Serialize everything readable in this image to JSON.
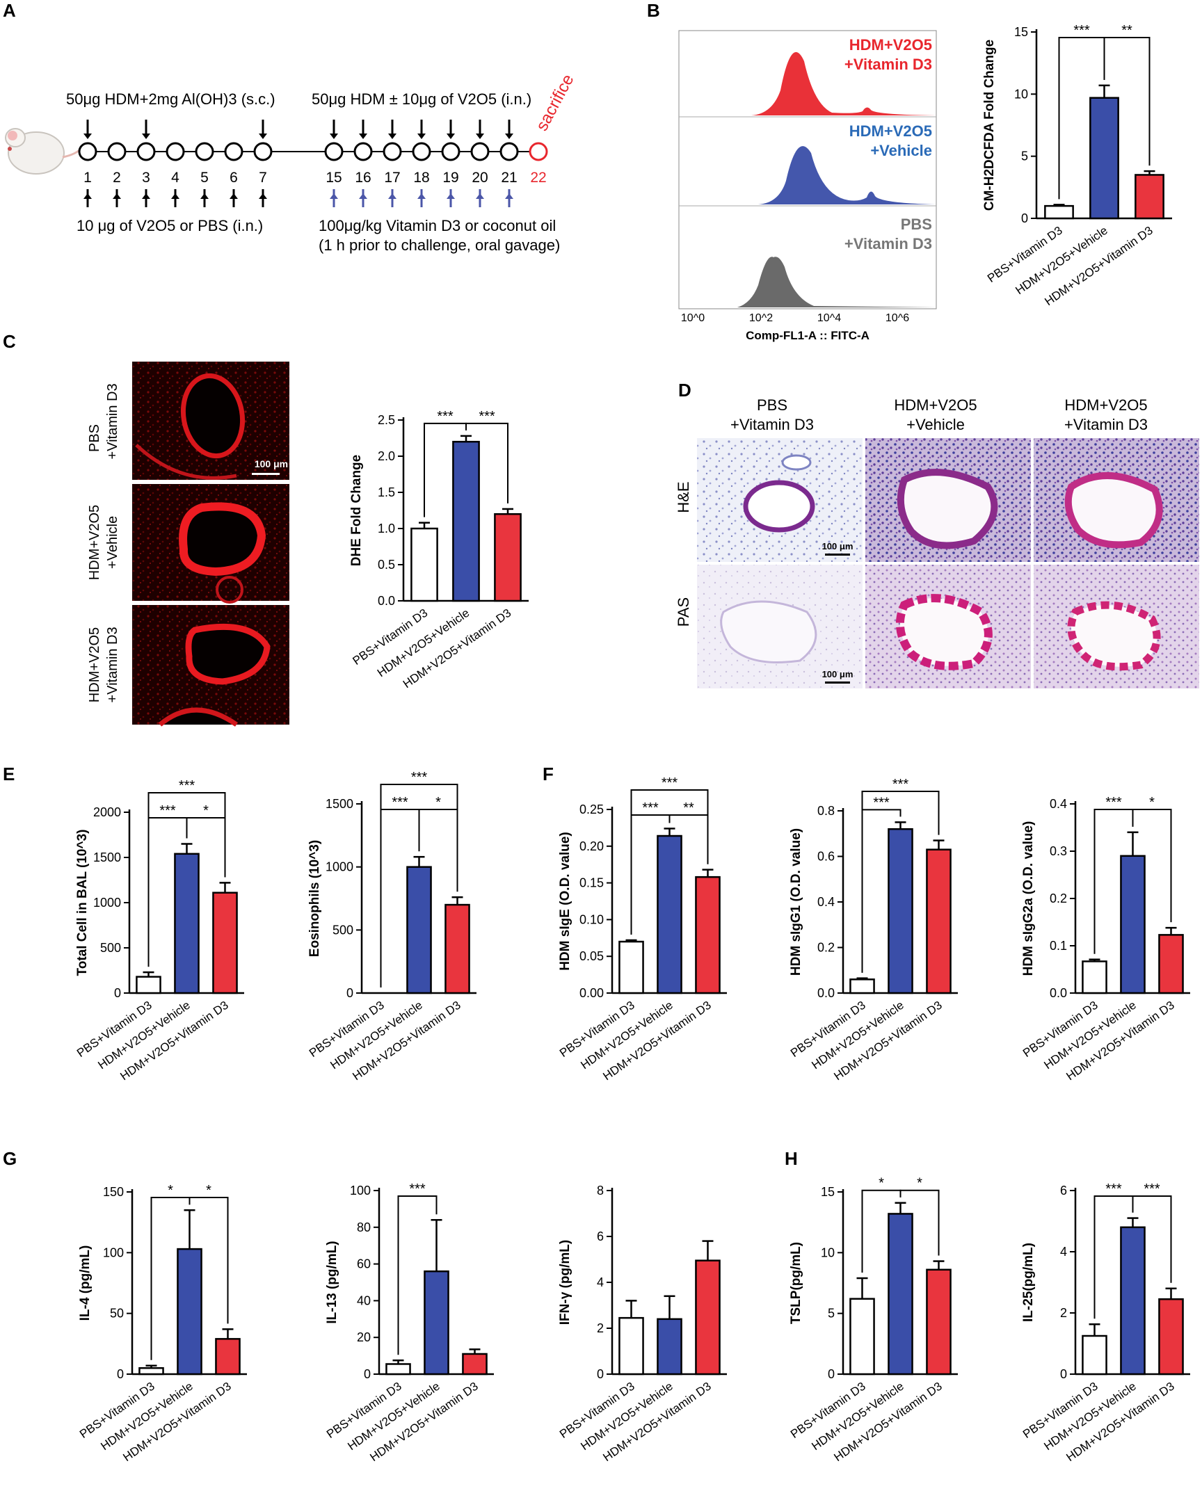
{
  "panel_letters": [
    "A",
    "B",
    "C",
    "D",
    "E",
    "F",
    "G",
    "H"
  ],
  "groups_short": [
    "PBS+Vitamin D3",
    "HDM+V2O5+Vehicle",
    "HDM+V2O5+Vitamin D3"
  ],
  "colors": {
    "pbs": "#ffffff",
    "vehicle": "#3a4ea8",
    "vitd": "#e9353e",
    "red_text": "#e8262d",
    "blue_text": "#2a6ab7",
    "gray_text": "#777777",
    "arrow_blue": "#4b56a8"
  },
  "panelA": {
    "sens_label": "50μg HDM+2mg Al(OH)3 (s.c.)",
    "chal_label": "50μg HDM ± 10μg of V2O5 (i.n.)",
    "sacrifice": "sacrifice",
    "days_left": [
      "1",
      "2",
      "3",
      "4",
      "5",
      "6",
      "7"
    ],
    "days_right": [
      "15",
      "16",
      "17",
      "18",
      "19",
      "20",
      "21"
    ],
    "day_last": "22",
    "under_left": "10 μg of V2O5 or PBS (i.n.)",
    "under_right_1": "100μg/kg Vitamin D3 or coconut oil",
    "under_right_2": "(1 h prior to challenge, oral gavage)"
  },
  "panelB": {
    "hist_labels": [
      [
        "HDM+V2O5",
        "+Vitamin D3"
      ],
      [
        "HDM+V2O5",
        "+Vehicle"
      ],
      [
        "PBS",
        "+Vitamin D3"
      ]
    ],
    "x_ticks": [
      "10^0",
      "10^2",
      "10^4",
      "10^6"
    ],
    "xlabel": "Comp-FL1-A :: FITC-A"
  },
  "panelC": {
    "row_labels": [
      [
        "PBS",
        "+Vitamin D3"
      ],
      [
        "HDM+V2O5",
        "+Vehicle"
      ],
      [
        "HDM+V2O5",
        "+Vitamin D3"
      ]
    ],
    "scale_bar": "100 μm"
  },
  "panelD": {
    "col_labels": [
      [
        "PBS",
        "+Vitamin D3"
      ],
      [
        "HDM+V2O5",
        "+Vehicle"
      ],
      [
        "HDM+V2O5",
        "+Vitamin D3"
      ]
    ],
    "row_labels": [
      "H&E",
      "PAS"
    ],
    "scale_bar": "100 μm"
  },
  "chart_data": [
    {
      "id": "B",
      "type": "bar",
      "ylabel": "CM-H2DCFDA Fold Change",
      "ylim": [
        0,
        15
      ],
      "yticks": [
        0,
        5,
        10,
        15
      ],
      "values": [
        1.0,
        9.7,
        3.5
      ],
      "errors": [
        0.1,
        1.0,
        0.3
      ],
      "sig": [
        {
          "a": 0,
          "b": 1,
          "lvl": 0,
          "t": "***"
        },
        {
          "a": 1,
          "b": 2,
          "lvl": 0,
          "t": "**"
        }
      ]
    },
    {
      "id": "C",
      "type": "bar",
      "ylabel": "DHE Fold Change",
      "ylim": [
        0,
        2.5
      ],
      "yticks": [
        0.0,
        0.5,
        1.0,
        1.5,
        2.0,
        2.5
      ],
      "values": [
        1.0,
        2.2,
        1.2
      ],
      "errors": [
        0.08,
        0.08,
        0.07
      ],
      "sig": [
        {
          "a": 0,
          "b": 1,
          "lvl": 0,
          "t": "***"
        },
        {
          "a": 1,
          "b": 2,
          "lvl": 0,
          "t": "***"
        }
      ]
    },
    {
      "id": "E1",
      "type": "bar",
      "ylabel": "Total Cell in BAL (10^3)",
      "ylim": [
        0,
        2000
      ],
      "yticks": [
        0,
        500,
        1000,
        1500,
        2000
      ],
      "values": [
        180,
        1540,
        1110
      ],
      "errors": [
        50,
        110,
        110
      ],
      "sig": [
        {
          "a": 0,
          "b": 1,
          "lvl": 0,
          "t": "***"
        },
        {
          "a": 1,
          "b": 2,
          "lvl": 0,
          "t": "*"
        },
        {
          "a": 0,
          "b": 2,
          "lvl": 1,
          "t": "***"
        }
      ]
    },
    {
      "id": "E2",
      "type": "bar",
      "ylabel": "Eosinophils (10^3)",
      "ylim": [
        0,
        1500
      ],
      "yticks": [
        0,
        500,
        1000,
        1500
      ],
      "values": [
        0,
        1000,
        700
      ],
      "errors": [
        0,
        80,
        60
      ],
      "sig": [
        {
          "a": 0,
          "b": 1,
          "lvl": 0,
          "t": "***"
        },
        {
          "a": 1,
          "b": 2,
          "lvl": 0,
          "t": "*"
        },
        {
          "a": 0,
          "b": 2,
          "lvl": 1,
          "t": "***"
        }
      ]
    },
    {
      "id": "F1",
      "type": "bar",
      "ylabel": "HDM sIgE (O.D. value)",
      "ylim": [
        0,
        0.25
      ],
      "yticks": [
        0.0,
        0.05,
        0.1,
        0.15,
        0.2,
        0.25
      ],
      "values": [
        0.07,
        0.214,
        0.158
      ],
      "errors": [
        0.002,
        0.01,
        0.01
      ],
      "sig": [
        {
          "a": 0,
          "b": 1,
          "lvl": 0,
          "t": "***"
        },
        {
          "a": 1,
          "b": 2,
          "lvl": 0,
          "t": "**"
        },
        {
          "a": 0,
          "b": 2,
          "lvl": 1,
          "t": "***"
        }
      ]
    },
    {
      "id": "F2",
      "type": "bar",
      "ylabel": "HDM sIgG1 (O.D. value)",
      "ylim": [
        0,
        0.8
      ],
      "yticks": [
        0.0,
        0.2,
        0.4,
        0.6,
        0.8
      ],
      "values": [
        0.06,
        0.72,
        0.63
      ],
      "errors": [
        0.005,
        0.03,
        0.04
      ],
      "sig": [
        {
          "a": 0,
          "b": 1,
          "lvl": 0,
          "t": "***"
        },
        {
          "a": 0,
          "b": 2,
          "lvl": 1,
          "t": "***"
        }
      ]
    },
    {
      "id": "F3",
      "type": "bar",
      "ylabel": "HDM sIgG2a (O.D. value)",
      "ylim": [
        0,
        0.4
      ],
      "yticks": [
        0.0,
        0.1,
        0.2,
        0.3,
        0.4
      ],
      "values": [
        0.067,
        0.29,
        0.123
      ],
      "errors": [
        0.004,
        0.05,
        0.015
      ],
      "sig": [
        {
          "a": 0,
          "b": 1,
          "lvl": 0,
          "t": "***"
        },
        {
          "a": 1,
          "b": 2,
          "lvl": 0,
          "t": "*"
        }
      ]
    },
    {
      "id": "G1",
      "type": "bar",
      "ylabel": "IL-4 (pg/mL)",
      "ylim": [
        0,
        150
      ],
      "yticks": [
        0,
        50,
        100,
        150
      ],
      "values": [
        5,
        103,
        29
      ],
      "errors": [
        2,
        32,
        8
      ],
      "sig": [
        {
          "a": 0,
          "b": 1,
          "lvl": 0,
          "t": "*"
        },
        {
          "a": 1,
          "b": 2,
          "lvl": 0,
          "t": "*"
        }
      ]
    },
    {
      "id": "G2",
      "type": "bar",
      "ylabel": "IL-13 (pg/mL)",
      "ylim": [
        0,
        100
      ],
      "yticks": [
        0,
        20,
        40,
        60,
        80,
        100
      ],
      "values": [
        5.5,
        56,
        11
      ],
      "errors": [
        2,
        28,
        2.5
      ],
      "sig": [
        {
          "a": 0,
          "b": 1,
          "lvl": 0,
          "t": "***"
        }
      ]
    },
    {
      "id": "G3",
      "type": "bar",
      "ylabel": "IFN-γ (pg/mL)",
      "ylim": [
        0,
        8
      ],
      "yticks": [
        0,
        2,
        4,
        6,
        8
      ],
      "values": [
        2.45,
        2.4,
        4.95
      ],
      "errors": [
        0.75,
        1.0,
        0.85
      ],
      "sig": []
    },
    {
      "id": "H1",
      "type": "bar",
      "ylabel": "TSLP(pg/mL)",
      "ylim": [
        0,
        15
      ],
      "yticks": [
        0,
        5,
        10,
        15
      ],
      "values": [
        6.2,
        13.2,
        8.6
      ],
      "errors": [
        1.7,
        0.9,
        0.7
      ],
      "sig": [
        {
          "a": 0,
          "b": 1,
          "lvl": 0,
          "t": "*"
        },
        {
          "a": 1,
          "b": 2,
          "lvl": 0,
          "t": "*"
        }
      ]
    },
    {
      "id": "H2",
      "type": "bar",
      "ylabel": "IL-25(pg/mL)",
      "ylim": [
        0,
        6
      ],
      "yticks": [
        0,
        2,
        4,
        6
      ],
      "values": [
        1.25,
        4.8,
        2.45
      ],
      "errors": [
        0.38,
        0.3,
        0.35
      ],
      "sig": [
        {
          "a": 0,
          "b": 1,
          "lvl": 0,
          "t": "***"
        },
        {
          "a": 1,
          "b": 2,
          "lvl": 0,
          "t": "***"
        }
      ]
    }
  ]
}
